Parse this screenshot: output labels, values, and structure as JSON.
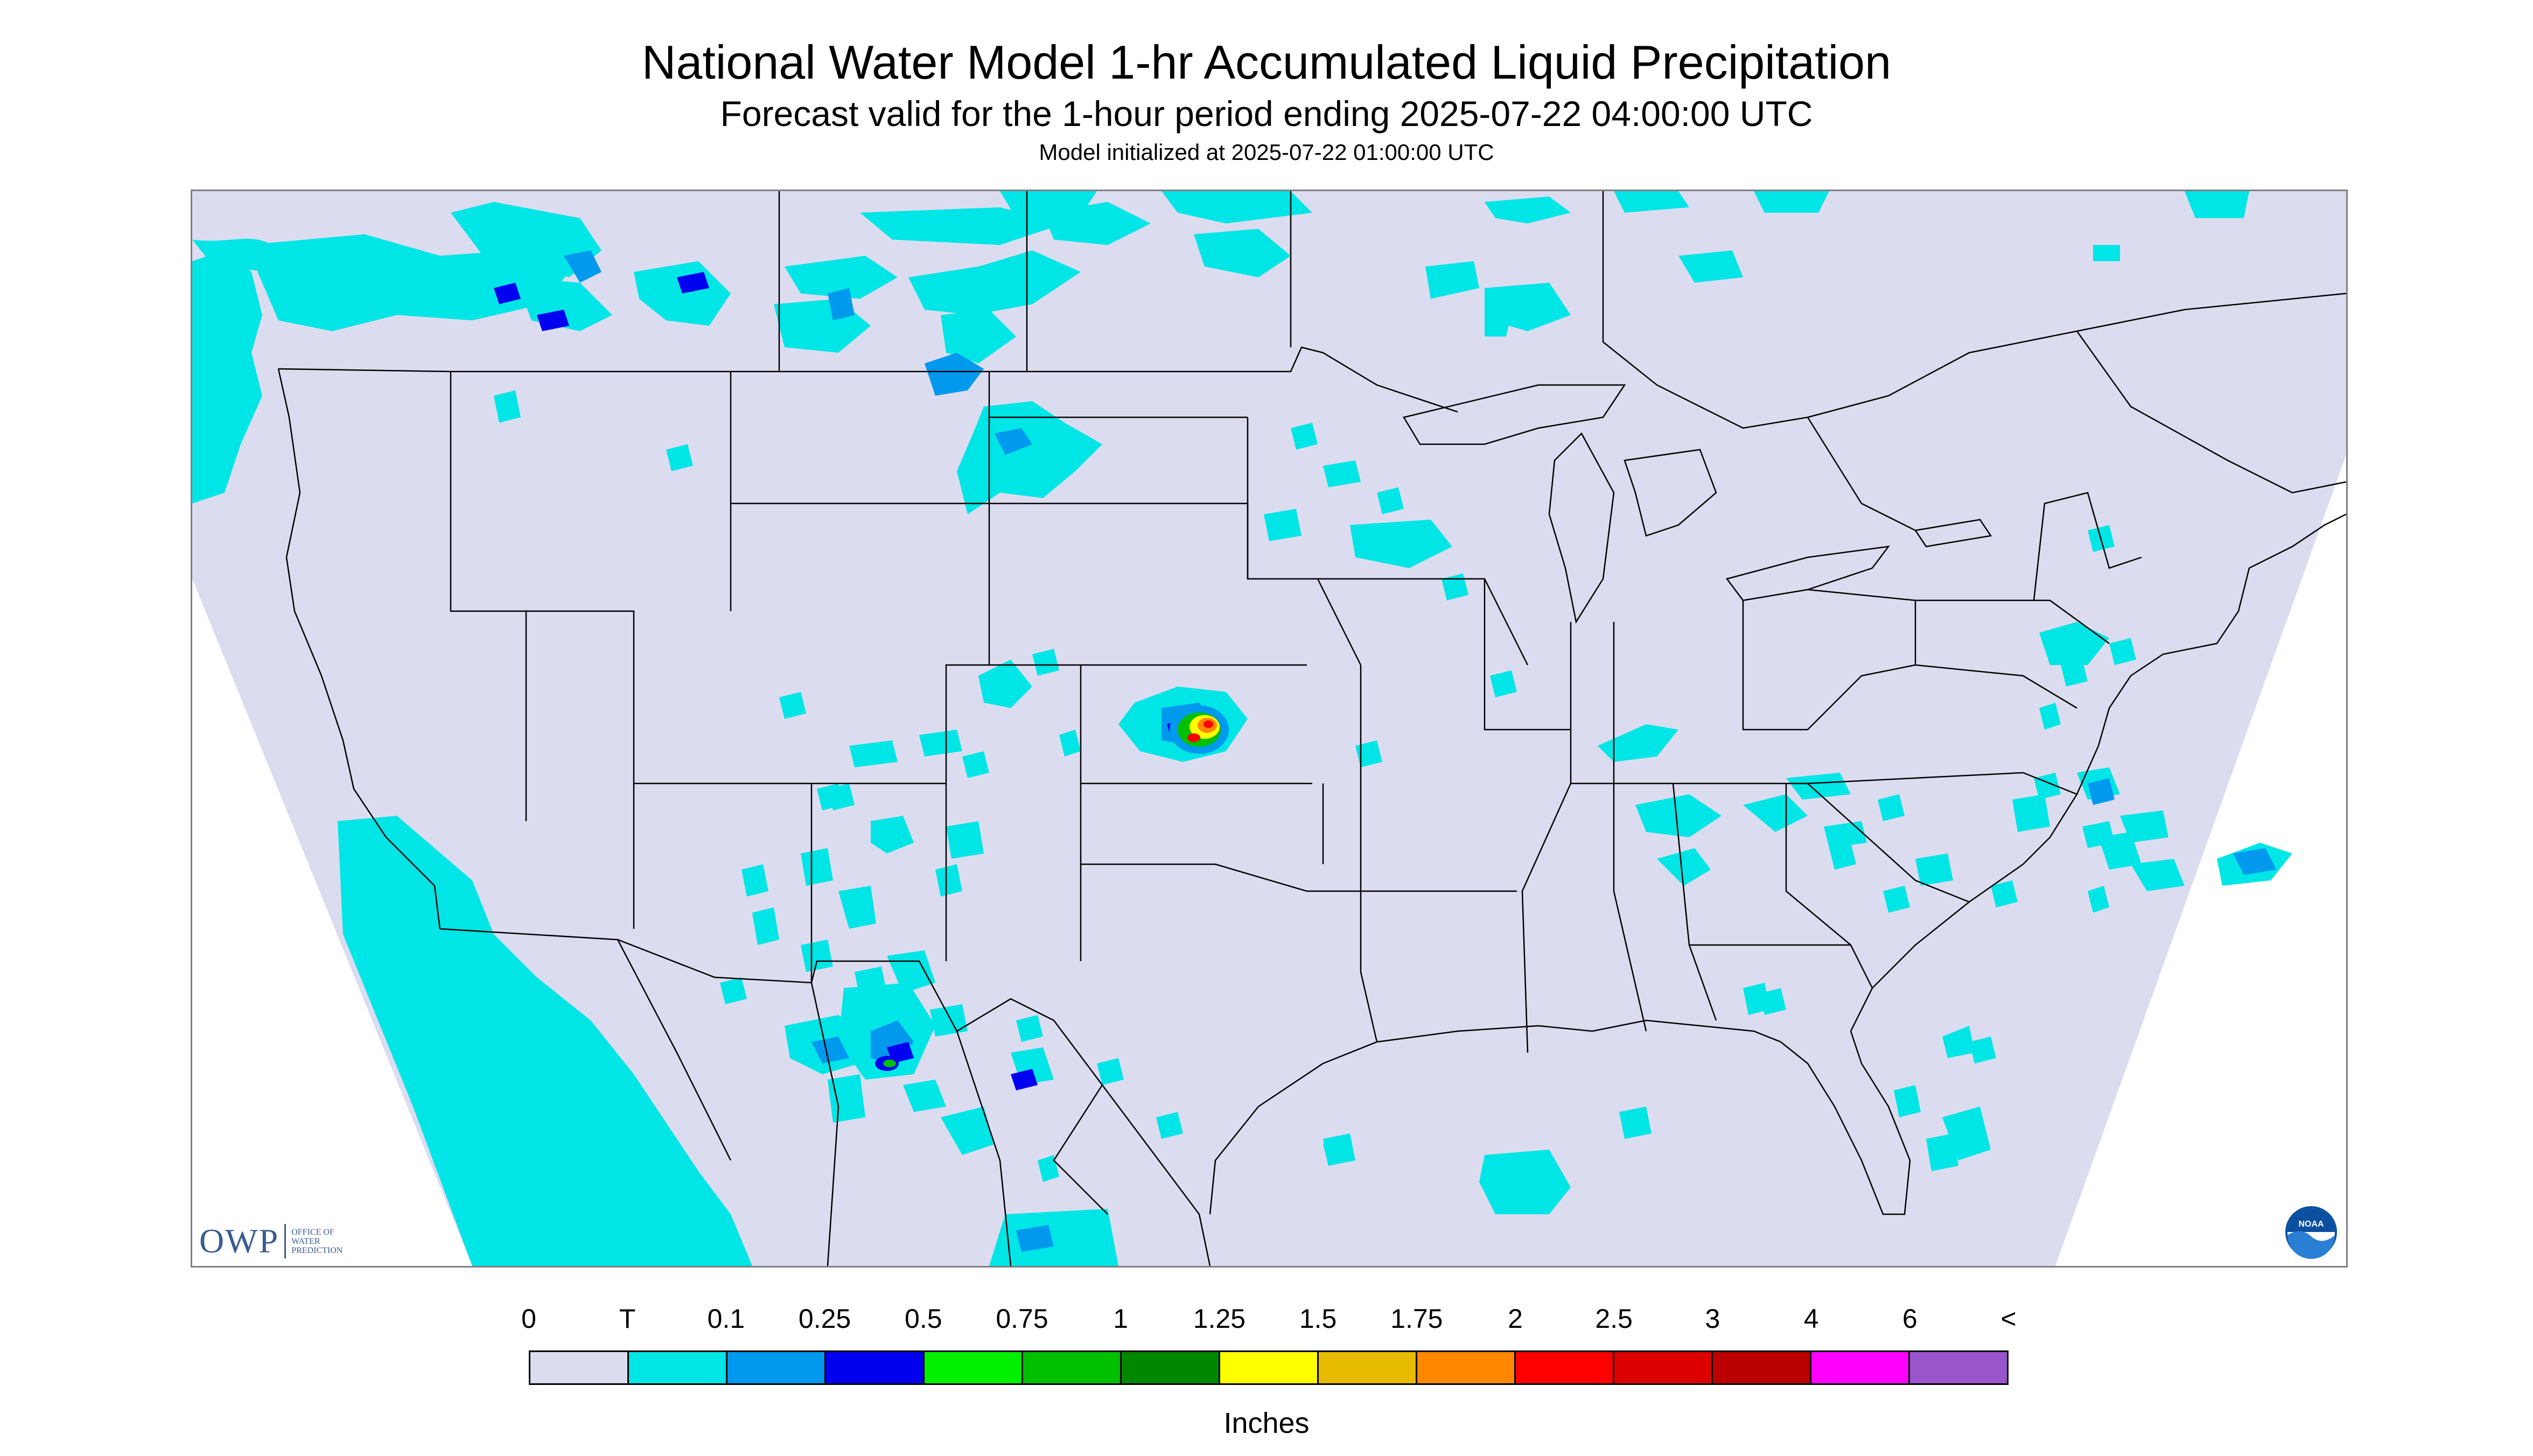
{
  "header": {
    "title": "National Water Model 1-hr Accumulated Liquid Precipitation",
    "subtitle": "Forecast valid for the 1-hour period ending 2025-07-22 04:00:00 UTC",
    "init": "Model initialized at 2025-07-22 01:00:00 UTC"
  },
  "logos": {
    "owp_text": "OWP",
    "owp_sub_1": "OFFICE OF",
    "owp_sub_2": "WATER",
    "owp_sub_3": "PREDICTION",
    "noaa_text": "NOAA"
  },
  "legend": {
    "labels": [
      "0",
      "T",
      "0.1",
      "0.25",
      "0.5",
      "0.75",
      "1",
      "1.25",
      "1.5",
      "1.75",
      "2",
      "2.5",
      "3",
      "4",
      "6",
      "<"
    ],
    "colors": [
      "#dcdcf0",
      "#00e5e5",
      "#0099ee",
      "#0000f0",
      "#00f000",
      "#00c000",
      "#008800",
      "#ffff00",
      "#e6bb00",
      "#ff8800",
      "#ff0000",
      "#dd0000",
      "#bb0000",
      "#ff00ff",
      "#9955cc"
    ],
    "units": "Inches"
  },
  "colors": {
    "domain_fill": "#dcdcf0",
    "outside_fill": "#ffffff",
    "precip_trace": "#00e5e5",
    "precip_light": "#0099ee",
    "precip_medium": "#0000f0"
  }
}
